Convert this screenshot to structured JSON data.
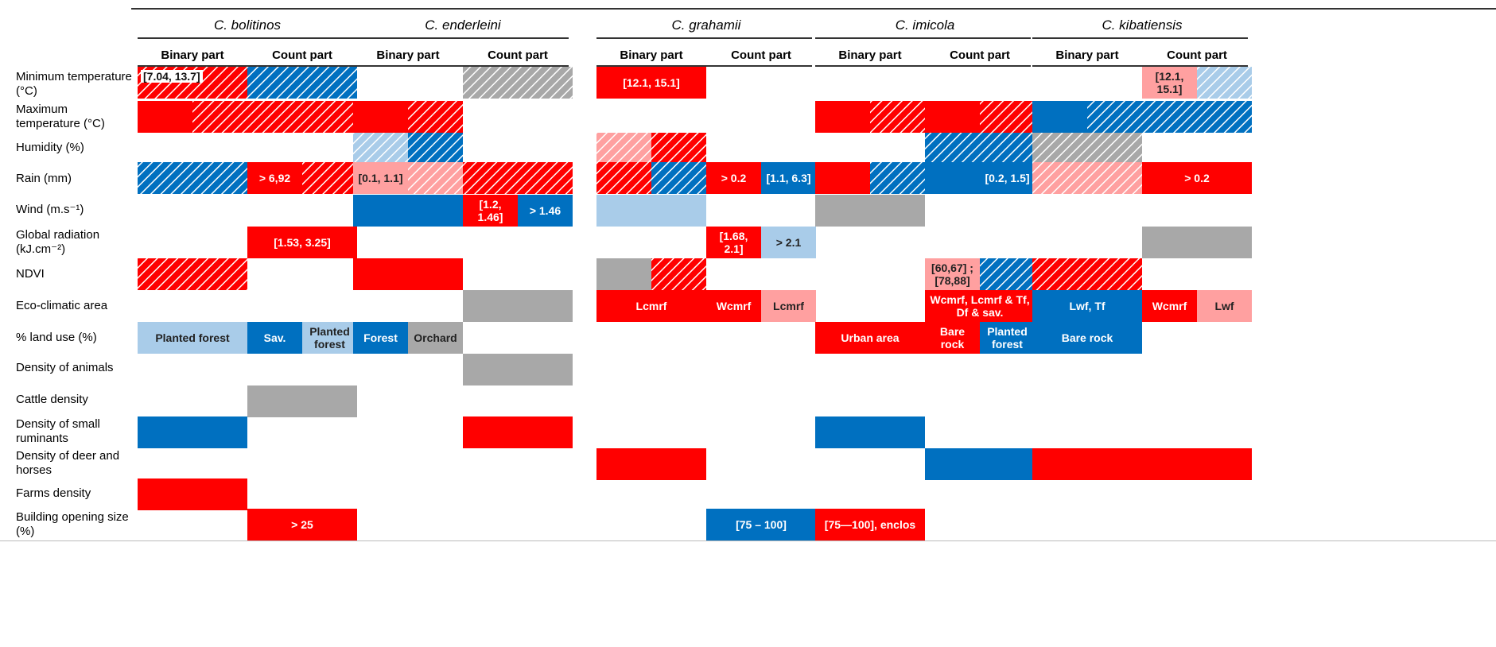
{
  "colors": {
    "red": "#ff0000",
    "blue": "#0070c0",
    "light_red": "#ffa0a0",
    "light_blue": "#a9cce9",
    "grey": "#a8a8a8"
  },
  "header": {
    "species": [
      "C. bolitinos",
      "C. enderleini",
      "C. grahamii",
      "C. imicola",
      "C. kibatiensis"
    ],
    "parts": [
      "Binary part",
      "Count part"
    ]
  },
  "rows": [
    "Minimum temperature (°C)",
    "Maximum temperature (°C)",
    "Humidity (%)",
    "Rain (mm)",
    "Wind (m.s⁻¹)",
    "Global radiation (kJ.cm⁻²)",
    "NDVI",
    "Eco-climatic area",
    "% land use (%)",
    "Density of animals",
    "Cattle density",
    "Density of small ruminants",
    "Density of deer and horses",
    "Farms density",
    "Building opening size (%)"
  ],
  "chart_data": {
    "type": "table",
    "description_note": "",
    "cells": [
      {
        "row": 0,
        "col": 0,
        "half": "full",
        "color": "red",
        "hatch": true,
        "text": "[7.04, 13.7]",
        "boxed": true
      },
      {
        "row": 0,
        "col": 1,
        "half": "full",
        "color": "blue",
        "hatch": true,
        "text": ""
      },
      {
        "row": 0,
        "col": 3,
        "half": "full",
        "color": "grey",
        "hatch": true,
        "text": ""
      },
      {
        "row": 0,
        "col": 4,
        "half": "full",
        "color": "red",
        "hatch": false,
        "text": "[12.1, 15.1]"
      },
      {
        "row": 0,
        "col": 9,
        "half": "left",
        "color": "light_red",
        "hatch": false,
        "text": "[12.1, 15.1]"
      },
      {
        "row": 0,
        "col": 9,
        "half": "right",
        "color": "light_blue",
        "hatch": true,
        "text": ""
      },
      {
        "row": 1,
        "col": 0,
        "half": "left",
        "color": "red",
        "hatch": false,
        "text": ""
      },
      {
        "row": 1,
        "col": 0,
        "half": "right",
        "color": "red",
        "hatch": true,
        "text": ""
      },
      {
        "row": 1,
        "col": 1,
        "half": "full",
        "color": "red",
        "hatch": true,
        "text": ""
      },
      {
        "row": 1,
        "col": 2,
        "half": "left",
        "color": "red",
        "hatch": false,
        "text": ""
      },
      {
        "row": 1,
        "col": 2,
        "half": "right",
        "color": "red",
        "hatch": true,
        "text": ""
      },
      {
        "row": 1,
        "col": 6,
        "half": "left",
        "color": "red",
        "hatch": false,
        "text": ""
      },
      {
        "row": 1,
        "col": 6,
        "half": "right",
        "color": "red",
        "hatch": true,
        "text": ""
      },
      {
        "row": 1,
        "col": 7,
        "half": "left",
        "color": "red",
        "hatch": false,
        "text": ""
      },
      {
        "row": 1,
        "col": 7,
        "half": "right",
        "color": "red",
        "hatch": true,
        "text": ""
      },
      {
        "row": 1,
        "col": 8,
        "half": "left",
        "color": "blue",
        "hatch": false,
        "text": ""
      },
      {
        "row": 1,
        "col": 8,
        "half": "right",
        "color": "blue",
        "hatch": true,
        "text": ""
      },
      {
        "row": 1,
        "col": 9,
        "half": "full",
        "color": "blue",
        "hatch": true,
        "text": ""
      },
      {
        "row": 2,
        "col": 2,
        "half": "left",
        "color": "light_blue",
        "hatch": true,
        "text": ""
      },
      {
        "row": 2,
        "col": 2,
        "half": "right",
        "color": "blue",
        "hatch": true,
        "text": ""
      },
      {
        "row": 2,
        "col": 4,
        "half": "left",
        "color": "light_red",
        "hatch": true,
        "text": ""
      },
      {
        "row": 2,
        "col": 4,
        "half": "right",
        "color": "red",
        "hatch": true,
        "text": ""
      },
      {
        "row": 2,
        "col": 7,
        "half": "full",
        "color": "blue",
        "hatch": true,
        "text": ""
      },
      {
        "row": 2,
        "col": 8,
        "half": "full",
        "color": "grey",
        "hatch": true,
        "text": ""
      },
      {
        "row": 3,
        "col": 0,
        "half": "full",
        "color": "blue",
        "hatch": true,
        "text": ""
      },
      {
        "row": 3,
        "col": 1,
        "half": "left",
        "color": "red",
        "hatch": false,
        "text": "> 6,92"
      },
      {
        "row": 3,
        "col": 1,
        "half": "right",
        "color": "red",
        "hatch": true,
        "text": ""
      },
      {
        "row": 3,
        "col": 2,
        "half": "left",
        "color": "light_red",
        "hatch": false,
        "text": "[0.1, 1.1]"
      },
      {
        "row": 3,
        "col": 2,
        "half": "right",
        "color": "light_red",
        "hatch": true,
        "text": ""
      },
      {
        "row": 3,
        "col": 3,
        "half": "full",
        "color": "red",
        "hatch": true,
        "text": ""
      },
      {
        "row": 3,
        "col": 4,
        "half": "left",
        "color": "red",
        "hatch": true,
        "text": ""
      },
      {
        "row": 3,
        "col": 4,
        "half": "right",
        "color": "blue",
        "hatch": true,
        "text": ""
      },
      {
        "row": 3,
        "col": 5,
        "half": "left",
        "color": "red",
        "hatch": false,
        "text": "> 0.2"
      },
      {
        "row": 3,
        "col": 5,
        "half": "right",
        "color": "blue",
        "hatch": false,
        "text": "[1.1, 6.3]"
      },
      {
        "row": 3,
        "col": 6,
        "half": "left",
        "color": "red",
        "hatch": false,
        "text": ""
      },
      {
        "row": 3,
        "col": 6,
        "half": "right",
        "color": "blue",
        "hatch": true,
        "text": ""
      },
      {
        "row": 3,
        "col": 7,
        "half": "left",
        "color": "blue",
        "hatch": false,
        "text": ""
      },
      {
        "row": 3,
        "col": 7,
        "half": "right",
        "color": "blue",
        "hatch": false,
        "text": "[0.2, 1.5]"
      },
      {
        "row": 3,
        "col": 8,
        "half": "full",
        "color": "light_red",
        "hatch": true,
        "text": ""
      },
      {
        "row": 3,
        "col": 9,
        "half": "full",
        "color": "red",
        "hatch": false,
        "text": "> 0.2"
      },
      {
        "row": 4,
        "col": 2,
        "half": "full",
        "color": "blue",
        "hatch": false,
        "text": ""
      },
      {
        "row": 4,
        "col": 3,
        "half": "left",
        "color": "red",
        "hatch": false,
        "text": "[1.2, 1.46]"
      },
      {
        "row": 4,
        "col": 3,
        "half": "right",
        "color": "blue",
        "hatch": false,
        "text": "> 1.46"
      },
      {
        "row": 4,
        "col": 4,
        "half": "full",
        "color": "light_blue",
        "hatch": false,
        "text": ""
      },
      {
        "row": 4,
        "col": 6,
        "half": "full",
        "color": "grey",
        "hatch": false,
        "text": ""
      },
      {
        "row": 5,
        "col": 1,
        "half": "full",
        "color": "red",
        "hatch": false,
        "text": "[1.53, 3.25]"
      },
      {
        "row": 5,
        "col": 5,
        "half": "left",
        "color": "red",
        "hatch": false,
        "text": "[1.68, 2.1]"
      },
      {
        "row": 5,
        "col": 5,
        "half": "right",
        "color": "light_blue",
        "hatch": false,
        "text": "> 2.1"
      },
      {
        "row": 5,
        "col": 9,
        "half": "full",
        "color": "grey",
        "hatch": false,
        "text": ""
      },
      {
        "row": 6,
        "col": 0,
        "half": "full",
        "color": "red",
        "hatch": true,
        "text": ""
      },
      {
        "row": 6,
        "col": 2,
        "half": "full",
        "color": "red",
        "hatch": false,
        "text": ""
      },
      {
        "row": 6,
        "col": 4,
        "half": "left",
        "color": "grey",
        "hatch": false,
        "text": ""
      },
      {
        "row": 6,
        "col": 4,
        "half": "right",
        "color": "red",
        "hatch": true,
        "text": ""
      },
      {
        "row": 6,
        "col": 7,
        "half": "left",
        "color": "light_red",
        "hatch": false,
        "text": "[60,67] ; [78,88]"
      },
      {
        "row": 6,
        "col": 7,
        "half": "right",
        "color": "blue",
        "hatch": true,
        "text": ""
      },
      {
        "row": 6,
        "col": 8,
        "half": "full",
        "color": "red",
        "hatch": true,
        "text": ""
      },
      {
        "row": 7,
        "col": 3,
        "half": "full",
        "color": "grey",
        "hatch": false,
        "text": ""
      },
      {
        "row": 7,
        "col": 4,
        "half": "full",
        "color": "red",
        "hatch": false,
        "text": "Lcmrf"
      },
      {
        "row": 7,
        "col": 5,
        "half": "left",
        "color": "red",
        "hatch": false,
        "text": "Wcmrf"
      },
      {
        "row": 7,
        "col": 5,
        "half": "right",
        "color": "light_red",
        "hatch": false,
        "text": "Lcmrf"
      },
      {
        "row": 7,
        "col": 7,
        "half": "full",
        "color": "red",
        "hatch": false,
        "text": "Wcmrf, Lcmrf & Tf, Df & sav."
      },
      {
        "row": 7,
        "col": 8,
        "half": "full",
        "color": "blue",
        "hatch": false,
        "text": "Lwf, Tf"
      },
      {
        "row": 7,
        "col": 9,
        "half": "left",
        "color": "red",
        "hatch": false,
        "text": "Wcmrf"
      },
      {
        "row": 7,
        "col": 9,
        "half": "right",
        "color": "light_red",
        "hatch": false,
        "text": "Lwf"
      },
      {
        "row": 8,
        "col": 0,
        "half": "full",
        "color": "light_blue",
        "hatch": false,
        "text": "Planted forest"
      },
      {
        "row": 8,
        "col": 1,
        "half": "left",
        "color": "blue",
        "hatch": false,
        "text": "Sav."
      },
      {
        "row": 8,
        "col": 1,
        "half": "right",
        "color": "light_blue",
        "hatch": false,
        "text": "Planted forest"
      },
      {
        "row": 8,
        "col": 2,
        "half": "left",
        "color": "blue",
        "hatch": false,
        "text": "Forest"
      },
      {
        "row": 8,
        "col": 2,
        "half": "right",
        "color": "grey",
        "hatch": false,
        "text": "Orchard"
      },
      {
        "row": 8,
        "col": 6,
        "half": "full",
        "color": "red",
        "hatch": false,
        "text": "Urban area"
      },
      {
        "row": 8,
        "col": 7,
        "half": "left",
        "color": "red",
        "hatch": false,
        "text": "Bare rock"
      },
      {
        "row": 8,
        "col": 7,
        "half": "right",
        "color": "blue",
        "hatch": false,
        "text": "Planted forest"
      },
      {
        "row": 8,
        "col": 8,
        "half": "full",
        "color": "blue",
        "hatch": false,
        "text": "Bare rock"
      },
      {
        "row": 9,
        "col": 3,
        "half": "full",
        "color": "grey",
        "hatch": false,
        "text": ""
      },
      {
        "row": 10,
        "col": 1,
        "half": "full",
        "color": "grey",
        "hatch": false,
        "text": ""
      },
      {
        "row": 11,
        "col": 0,
        "half": "full",
        "color": "blue",
        "hatch": false,
        "text": ""
      },
      {
        "row": 11,
        "col": 3,
        "half": "full",
        "color": "red",
        "hatch": false,
        "text": ""
      },
      {
        "row": 11,
        "col": 6,
        "half": "full",
        "color": "blue",
        "hatch": false,
        "text": ""
      },
      {
        "row": 12,
        "col": 4,
        "half": "full",
        "color": "red",
        "hatch": false,
        "text": ""
      },
      {
        "row": 12,
        "col": 7,
        "half": "full",
        "color": "blue",
        "hatch": false,
        "text": ""
      },
      {
        "row": 12,
        "col": 8,
        "half": "full",
        "color": "red",
        "hatch": false,
        "text": ""
      },
      {
        "row": 12,
        "col": 9,
        "half": "full",
        "color": "red",
        "hatch": false,
        "text": ""
      },
      {
        "row": 13,
        "col": 0,
        "half": "full",
        "color": "red",
        "hatch": false,
        "text": ""
      },
      {
        "row": 14,
        "col": 1,
        "half": "full",
        "color": "red",
        "hatch": false,
        "text": "> 25"
      },
      {
        "row": 14,
        "col": 5,
        "half": "full",
        "color": "blue",
        "hatch": false,
        "text": "[75 – 100]"
      },
      {
        "row": 14,
        "col": 6,
        "half": "full",
        "color": "red",
        "hatch": false,
        "text": "[75—100], enclos"
      }
    ]
  }
}
